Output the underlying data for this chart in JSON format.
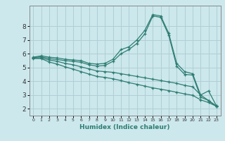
{
  "xlabel": "Humidex (Indice chaleur)",
  "bg_color": "#cce8ed",
  "grid_color": "#b0ced4",
  "line_color": "#2e7d72",
  "xlim": [
    -0.5,
    23.5
  ],
  "ylim": [
    1.5,
    9.5
  ],
  "yticks": [
    2,
    3,
    4,
    5,
    6,
    7,
    8
  ],
  "xticks": [
    0,
    1,
    2,
    3,
    4,
    5,
    6,
    7,
    8,
    9,
    10,
    11,
    12,
    13,
    14,
    15,
    16,
    17,
    18,
    19,
    20,
    21,
    22,
    23
  ],
  "lines": [
    {
      "x": [
        0,
        1,
        2,
        3,
        4,
        5,
        6,
        7,
        8,
        9,
        10,
        11,
        12,
        13,
        14,
        15,
        16,
        17,
        18,
        19,
        20,
        21,
        22,
        23
      ],
      "y": [
        5.75,
        5.85,
        5.75,
        5.7,
        5.6,
        5.55,
        5.5,
        5.3,
        5.25,
        5.3,
        5.6,
        6.3,
        6.5,
        7.0,
        7.7,
        8.85,
        8.75,
        7.5,
        5.3,
        4.7,
        4.55,
        3.0,
        3.3,
        2.2
      ]
    },
    {
      "x": [
        0,
        1,
        2,
        3,
        4,
        5,
        6,
        7,
        8,
        9,
        10,
        11,
        12,
        13,
        14,
        15,
        16,
        17,
        18,
        19,
        20,
        21,
        22,
        23
      ],
      "y": [
        5.72,
        5.78,
        5.65,
        5.58,
        5.5,
        5.45,
        5.38,
        5.2,
        5.1,
        5.15,
        5.45,
        6.0,
        6.3,
        6.75,
        7.45,
        8.75,
        8.65,
        7.35,
        5.1,
        4.5,
        4.45,
        2.85,
        2.6,
        2.15
      ]
    },
    {
      "x": [
        0,
        1,
        2,
        3,
        4,
        5,
        6,
        7,
        8,
        9,
        10,
        11,
        12,
        13,
        14,
        15,
        16,
        17,
        18,
        19,
        20,
        21,
        22,
        23
      ],
      "y": [
        5.7,
        5.7,
        5.55,
        5.45,
        5.3,
        5.2,
        5.05,
        4.9,
        4.75,
        4.7,
        4.65,
        4.55,
        4.45,
        4.35,
        4.25,
        4.15,
        4.05,
        3.95,
        3.85,
        3.7,
        3.6,
        3.0,
        2.6,
        2.2
      ]
    },
    {
      "x": [
        0,
        1,
        2,
        3,
        4,
        5,
        6,
        7,
        8,
        9,
        10,
        11,
        12,
        13,
        14,
        15,
        16,
        17,
        18,
        19,
        20,
        21,
        22,
        23
      ],
      "y": [
        5.65,
        5.65,
        5.4,
        5.25,
        5.05,
        4.88,
        4.7,
        4.52,
        4.35,
        4.28,
        4.18,
        4.05,
        3.9,
        3.78,
        3.65,
        3.52,
        3.42,
        3.32,
        3.2,
        3.08,
        2.98,
        2.65,
        2.45,
        2.18
      ]
    }
  ]
}
